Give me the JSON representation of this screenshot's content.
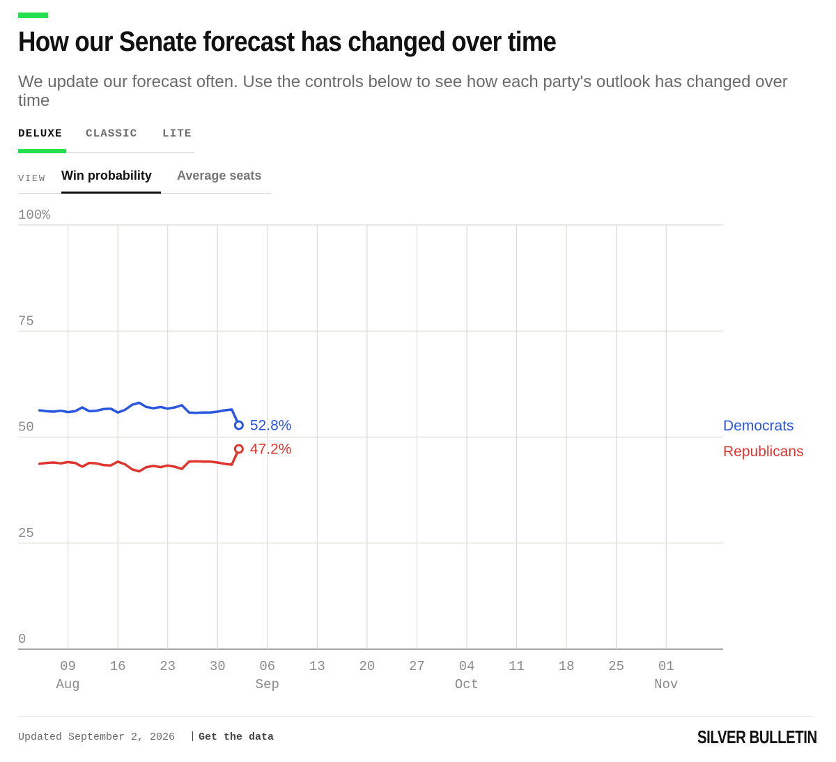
{
  "header": {
    "title": "How our Senate forecast has changed over time",
    "subtitle": "We update our forecast often. Use the controls below to see how each party's outlook has changed over time",
    "accent_color": "#22e04f"
  },
  "model_tabs": {
    "items": [
      {
        "label": "DELUXE",
        "active": true
      },
      {
        "label": "CLASSIC",
        "active": false
      },
      {
        "label": "LITE",
        "active": false
      }
    ]
  },
  "view_tabs": {
    "label": "VIEW",
    "items": [
      {
        "label": "Win probability",
        "active": true
      },
      {
        "label": "Average seats",
        "active": false
      }
    ]
  },
  "chart_data": {
    "type": "line",
    "ylabel": "",
    "xlabel": "",
    "ylim": [
      0,
      100
    ],
    "y_ticks": [
      "100%",
      "75",
      "50",
      "25",
      "0"
    ],
    "y_tick_values": [
      100,
      75,
      50,
      25,
      0
    ],
    "xlim": [
      "2026-08-02",
      "2026-11-09"
    ],
    "x_ticks": [
      {
        "date": "2026-08-09",
        "day": "09",
        "month": "Aug"
      },
      {
        "date": "2026-08-16",
        "day": "16",
        "month": ""
      },
      {
        "date": "2026-08-23",
        "day": "23",
        "month": ""
      },
      {
        "date": "2026-08-30",
        "day": "30",
        "month": ""
      },
      {
        "date": "2026-09-06",
        "day": "06",
        "month": "Sep"
      },
      {
        "date": "2026-09-13",
        "day": "13",
        "month": ""
      },
      {
        "date": "2026-09-20",
        "day": "20",
        "month": ""
      },
      {
        "date": "2026-09-27",
        "day": "27",
        "month": ""
      },
      {
        "date": "2026-10-04",
        "day": "04",
        "month": "Oct"
      },
      {
        "date": "2026-10-11",
        "day": "11",
        "month": ""
      },
      {
        "date": "2026-10-18",
        "day": "18",
        "month": ""
      },
      {
        "date": "2026-10-25",
        "day": "25",
        "month": ""
      },
      {
        "date": "2026-11-01",
        "day": "01",
        "month": "Nov"
      }
    ],
    "x": [
      "2026-08-05",
      "2026-08-06",
      "2026-08-07",
      "2026-08-08",
      "2026-08-09",
      "2026-08-10",
      "2026-08-11",
      "2026-08-12",
      "2026-08-13",
      "2026-08-14",
      "2026-08-15",
      "2026-08-16",
      "2026-08-17",
      "2026-08-18",
      "2026-08-19",
      "2026-08-20",
      "2026-08-21",
      "2026-08-22",
      "2026-08-23",
      "2026-08-24",
      "2026-08-25",
      "2026-08-26",
      "2026-08-27",
      "2026-08-28",
      "2026-08-29",
      "2026-08-30",
      "2026-08-31",
      "2026-09-01",
      "2026-09-02"
    ],
    "series": [
      {
        "name": "Democrats",
        "color": "#2a57e0",
        "values": [
          56.3,
          56.1,
          56.0,
          56.2,
          55.9,
          56.1,
          57.0,
          56.1,
          56.2,
          56.6,
          56.7,
          55.8,
          56.4,
          57.6,
          58.1,
          57.1,
          56.8,
          57.1,
          56.7,
          57.0,
          57.5,
          55.8,
          55.7,
          55.8,
          55.8,
          56.0,
          56.3,
          56.5,
          52.8
        ],
        "end_label": "52.8%"
      },
      {
        "name": "Republicans",
        "color": "#e0352f",
        "values": [
          43.7,
          43.9,
          44.0,
          43.8,
          44.1,
          43.9,
          43.0,
          43.9,
          43.8,
          43.4,
          43.3,
          44.2,
          43.6,
          42.4,
          41.9,
          42.9,
          43.2,
          42.9,
          43.3,
          43.0,
          42.5,
          44.2,
          44.3,
          44.2,
          44.2,
          44.0,
          43.7,
          43.5,
          47.2
        ],
        "end_label": "47.2%"
      }
    ],
    "legend_position": "right",
    "grid": true
  },
  "footer": {
    "updated": "Updated September 2, 2026",
    "separator": "|",
    "data_link": "Get the data",
    "logo": "SILVER BULLETIN"
  }
}
